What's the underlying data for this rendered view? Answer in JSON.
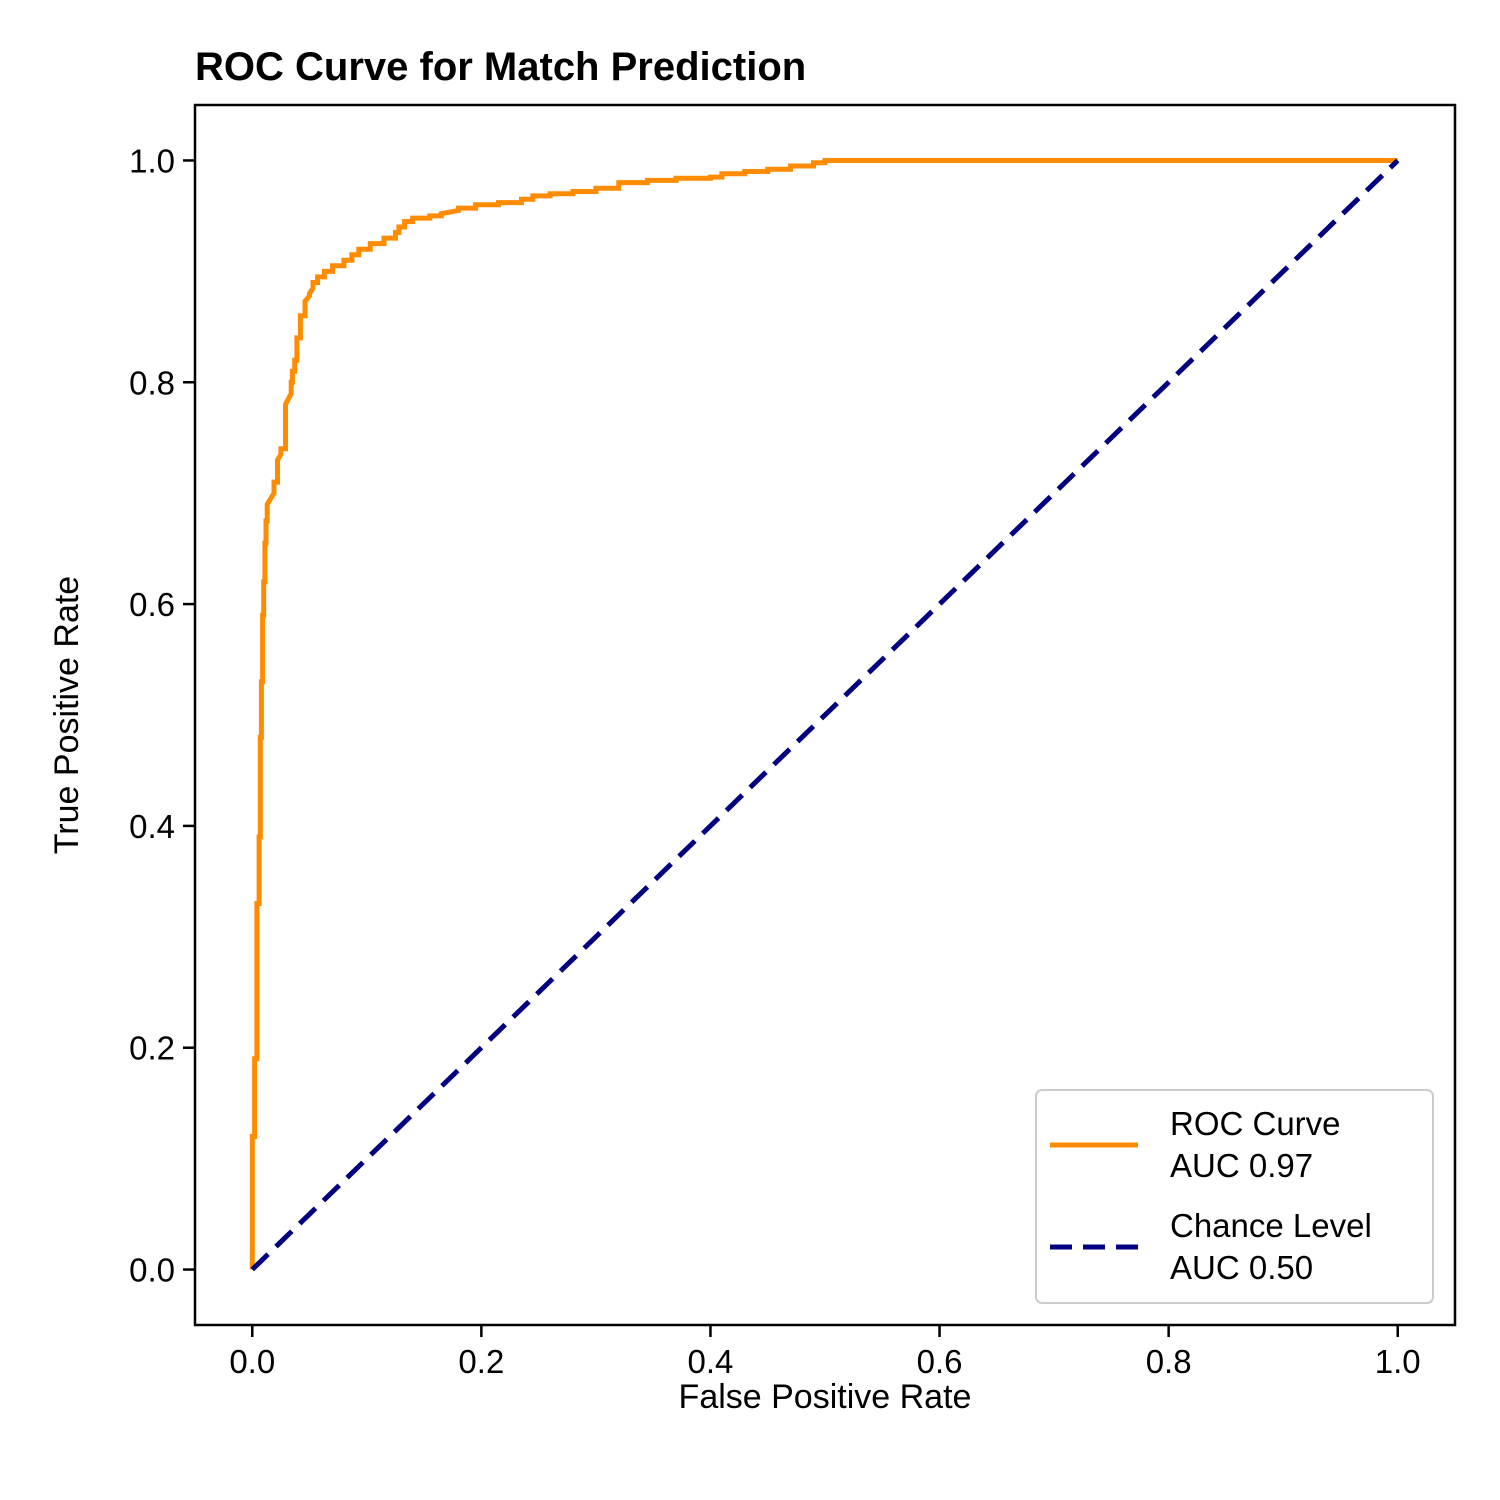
{
  "chart_data": {
    "type": "line",
    "title": "ROC Curve for Match Prediction",
    "xlabel": "False Positive Rate",
    "ylabel": "True Positive Rate",
    "xlim": [
      -0.05,
      1.05
    ],
    "ylim": [
      -0.05,
      1.05
    ],
    "x_ticks": [
      "0.0",
      "0.2",
      "0.4",
      "0.6",
      "0.8",
      "1.0"
    ],
    "y_ticks": [
      "0.0",
      "0.2",
      "0.4",
      "0.6",
      "0.8",
      "1.0"
    ],
    "grid": false,
    "legend_position": "lower-right",
    "series": [
      {
        "name_lines": [
          "ROC Curve",
          "AUC 0.97"
        ],
        "color": "#ff8c00",
        "style": "solid",
        "x": [
          0.0,
          0.0,
          0.002,
          0.002,
          0.004,
          0.004,
          0.006,
          0.006,
          0.007,
          0.007,
          0.008,
          0.008,
          0.009,
          0.009,
          0.01,
          0.01,
          0.011,
          0.011,
          0.012,
          0.012,
          0.013,
          0.013,
          0.016,
          0.019,
          0.019,
          0.022,
          0.022,
          0.025,
          0.025,
          0.029,
          0.029,
          0.034,
          0.034,
          0.035,
          0.035,
          0.037,
          0.037,
          0.039,
          0.039,
          0.042,
          0.042,
          0.046,
          0.046,
          0.05,
          0.05,
          0.053,
          0.053,
          0.057,
          0.057,
          0.063,
          0.063,
          0.07,
          0.07,
          0.08,
          0.08,
          0.087,
          0.087,
          0.093,
          0.093,
          0.103,
          0.103,
          0.115,
          0.115,
          0.125,
          0.125,
          0.128,
          0.128,
          0.133,
          0.133,
          0.14,
          0.14,
          0.155,
          0.155,
          0.165,
          0.165,
          0.18,
          0.18,
          0.195,
          0.195,
          0.215,
          0.215,
          0.235,
          0.235,
          0.245,
          0.245,
          0.26,
          0.26,
          0.28,
          0.28,
          0.3,
          0.3,
          0.32,
          0.32,
          0.345,
          0.345,
          0.37,
          0.37,
          0.4,
          0.4,
          0.41,
          0.41,
          0.43,
          0.43,
          0.45,
          0.45,
          0.47,
          0.47,
          0.49,
          0.49,
          0.5,
          0.5,
          0.54,
          1.0
        ],
        "y": [
          0.0,
          0.12,
          0.12,
          0.19,
          0.19,
          0.33,
          0.33,
          0.39,
          0.39,
          0.48,
          0.48,
          0.53,
          0.53,
          0.59,
          0.59,
          0.62,
          0.62,
          0.655,
          0.655,
          0.675,
          0.675,
          0.69,
          0.695,
          0.7,
          0.71,
          0.71,
          0.73,
          0.735,
          0.74,
          0.74,
          0.78,
          0.79,
          0.8,
          0.8,
          0.81,
          0.81,
          0.82,
          0.82,
          0.84,
          0.84,
          0.86,
          0.86,
          0.873,
          0.878,
          0.88,
          0.885,
          0.89,
          0.89,
          0.895,
          0.895,
          0.9,
          0.9,
          0.905,
          0.905,
          0.91,
          0.91,
          0.915,
          0.915,
          0.92,
          0.92,
          0.925,
          0.925,
          0.93,
          0.93,
          0.935,
          0.935,
          0.94,
          0.94,
          0.945,
          0.945,
          0.948,
          0.948,
          0.95,
          0.95,
          0.952,
          0.955,
          0.957,
          0.957,
          0.96,
          0.96,
          0.962,
          0.962,
          0.965,
          0.965,
          0.968,
          0.968,
          0.97,
          0.97,
          0.972,
          0.972,
          0.975,
          0.975,
          0.98,
          0.98,
          0.982,
          0.982,
          0.984,
          0.984,
          0.985,
          0.985,
          0.988,
          0.988,
          0.99,
          0.99,
          0.992,
          0.992,
          0.995,
          0.995,
          0.998,
          0.998,
          1.0,
          1.0,
          1.0
        ]
      },
      {
        "name_lines": [
          "Chance Level",
          "AUC 0.50"
        ],
        "color": "#000080",
        "style": "dashed",
        "x": [
          0.0,
          1.0
        ],
        "y": [
          0.0,
          1.0
        ]
      }
    ]
  }
}
